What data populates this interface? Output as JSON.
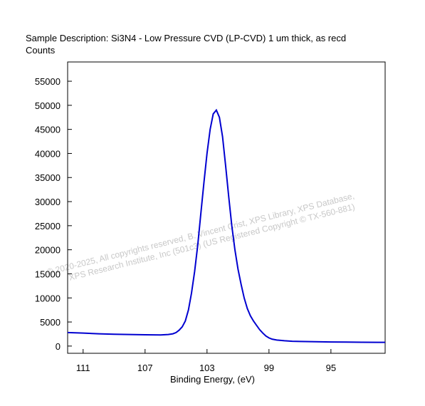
{
  "sample_description": "Sample Description:  Si3N4 - Low Pressure CVD (LP-CVD) 1 um thick, as recd",
  "watermark": {
    "line1": "© 2020-2025,  All copyrights reserved,   B. Vincent Crist,  XPS Library, XPS Database,",
    "line2": "XPS Research Institute, Inc (501c3)   (US Registered Copyright © TX-560-881)"
  },
  "chart_data": {
    "type": "line",
    "title": "",
    "xlabel": "Binding Energy, (eV)",
    "ylabel": "Counts",
    "xlim": [
      112.0,
      91.5
    ],
    "ylim": [
      -1500,
      59000
    ],
    "x_reversed": true,
    "xticks": [
      111,
      107,
      103,
      99,
      95
    ],
    "yticks": [
      0,
      5000,
      10000,
      15000,
      20000,
      25000,
      30000,
      35000,
      40000,
      45000,
      50000,
      55000
    ],
    "grid": false,
    "line_color": "#0000d0",
    "series": [
      {
        "x": [
          112.0,
          111.0,
          110.0,
          109.0,
          108.0,
          107.0,
          106.0,
          105.5,
          105.2,
          105.0,
          104.8,
          104.6,
          104.4,
          104.2,
          104.0,
          103.8,
          103.6,
          103.4,
          103.2,
          103.0,
          102.8,
          102.6,
          102.4,
          102.2,
          102.0,
          101.8,
          101.6,
          101.4,
          101.2,
          101.0,
          100.8,
          100.6,
          100.4,
          100.2,
          100.0,
          99.8,
          99.6,
          99.4,
          99.2,
          99.0,
          98.8,
          98.5,
          98.0,
          97.5,
          97.0,
          96.0,
          95.0,
          94.0,
          93.0,
          92.0,
          91.5
        ],
        "y": [
          2800,
          2700,
          2550,
          2450,
          2400,
          2350,
          2300,
          2400,
          2550,
          2800,
          3300,
          4000,
          5200,
          7500,
          11000,
          15500,
          21000,
          27500,
          34000,
          40000,
          45000,
          48200,
          49000,
          47500,
          43500,
          37500,
          31000,
          25000,
          20000,
          16000,
          12800,
          10000,
          7800,
          6300,
          5200,
          4300,
          3400,
          2700,
          2100,
          1700,
          1450,
          1250,
          1100,
          1000,
          950,
          900,
          850,
          820,
          800,
          780,
          780
        ]
      }
    ]
  }
}
